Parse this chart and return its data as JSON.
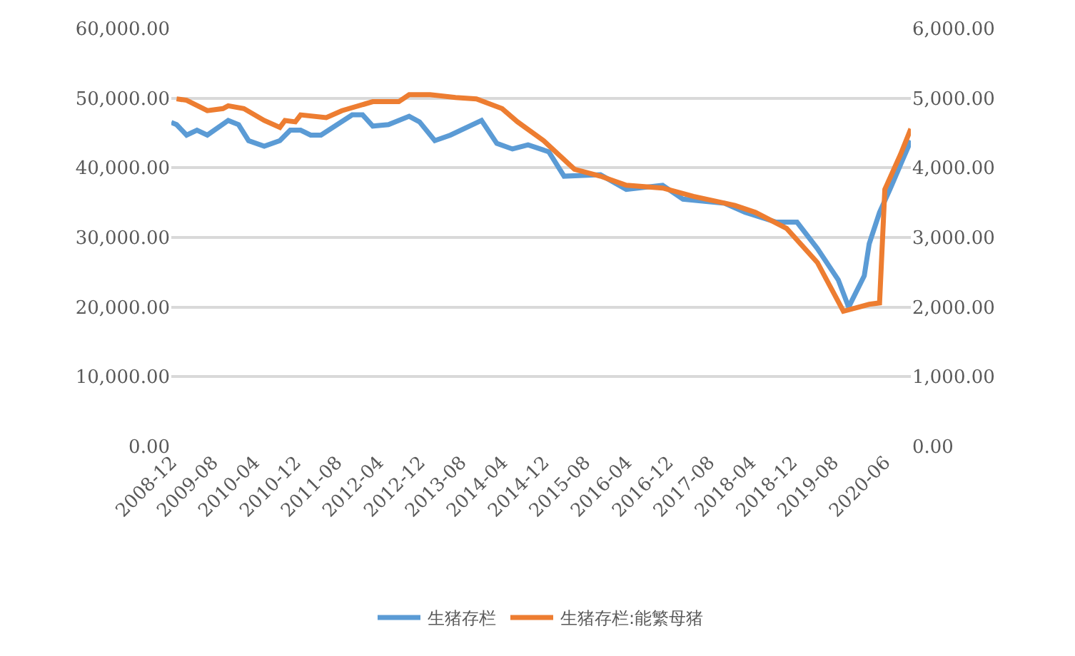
{
  "chart_data": {
    "type": "line",
    "xlim": [
      "2008-12",
      "2020-11"
    ],
    "xticks": [
      "2008-12",
      "2009-08",
      "2010-04",
      "2010-12",
      "2011-08",
      "2012-04",
      "2012-12",
      "2013-08",
      "2014-04",
      "2014-12",
      "2015-08",
      "2016-04",
      "2016-12",
      "2017-08",
      "2018-04",
      "2018-12",
      "2019-08",
      "2020-06"
    ],
    "ylim": [
      0,
      60000
    ],
    "yticks": [
      {
        "value": 0,
        "label": "0.00"
      },
      {
        "value": 10000,
        "label": "10,000.00"
      },
      {
        "value": 20000,
        "label": "20,000.00"
      },
      {
        "value": 30000,
        "label": "30,000.00"
      },
      {
        "value": 40000,
        "label": "40,000.00"
      },
      {
        "value": 50000,
        "label": "50,000.00"
      },
      {
        "value": 60000,
        "label": "60,000.00"
      }
    ],
    "y2lim": [
      0,
      6000
    ],
    "y2ticks": [
      {
        "value": 0,
        "label": "0.00"
      },
      {
        "value": 1000,
        "label": "1,000.00"
      },
      {
        "value": 2000,
        "label": "2,000.00"
      },
      {
        "value": 3000,
        "label": "3,000.00"
      },
      {
        "value": 4000,
        "label": "4,000.00"
      },
      {
        "value": 5000,
        "label": "5,000.00"
      },
      {
        "value": 6000,
        "label": "6,000.00"
      }
    ],
    "grid": "y",
    "legend": "bottom",
    "series": [
      {
        "name": "生猪存栏",
        "color": "#5b9bd5",
        "x": [
          "2008-12",
          "2009-01",
          "2009-03",
          "2009-05",
          "2009-07",
          "2009-11",
          "2010-01",
          "2010-03",
          "2010-06",
          "2010-09",
          "2010-11",
          "2011-01",
          "2011-03",
          "2011-05",
          "2011-11",
          "2012-01",
          "2012-03",
          "2012-06",
          "2012-10",
          "2012-12",
          "2013-03",
          "2013-06",
          "2013-12",
          "2014-03",
          "2014-06",
          "2014-09",
          "2015-01",
          "2015-04",
          "2015-11",
          "2016-04",
          "2016-11",
          "2017-03",
          "2017-11",
          "2018-03",
          "2018-09",
          "2019-01",
          "2019-05",
          "2019-09",
          "2019-11",
          "2020-02",
          "2020-03",
          "2020-05",
          "2020-07",
          "2020-11"
        ],
        "values": [
          46500,
          46200,
          44700,
          45400,
          44700,
          46800,
          46200,
          43900,
          43100,
          43900,
          45400,
          45400,
          44700,
          44700,
          47600,
          47600,
          46000,
          46200,
          47400,
          46600,
          43900,
          44700,
          46800,
          43500,
          42700,
          43300,
          42300,
          38800,
          39000,
          36900,
          37500,
          35500,
          34900,
          33600,
          32200,
          32200,
          28400,
          23900,
          20000,
          24500,
          29100,
          33600,
          36900,
          43900
        ]
      },
      {
        "name": "生猪存栏:能繁母猪",
        "color": "#ed7d31",
        "axis": "y2",
        "x": [
          "2009-01",
          "2009-03",
          "2009-07",
          "2009-10",
          "2009-11",
          "2010-02",
          "2010-06",
          "2010-09",
          "2010-10",
          "2010-12",
          "2011-01",
          "2011-06",
          "2011-09",
          "2012-03",
          "2012-08",
          "2012-10",
          "2013-02",
          "2013-07",
          "2013-11",
          "2014-04",
          "2014-07",
          "2014-12",
          "2015-06",
          "2015-11",
          "2016-04",
          "2016-11",
          "2017-05",
          "2018-01",
          "2018-05",
          "2018-11",
          "2019-05",
          "2019-10",
          "2020-03",
          "2020-05",
          "2020-06",
          "2020-09",
          "2020-11"
        ],
        "values": [
          4990,
          4970,
          4820,
          4850,
          4890,
          4850,
          4680,
          4580,
          4680,
          4660,
          4760,
          4720,
          4820,
          4950,
          4950,
          5050,
          5050,
          5010,
          4990,
          4850,
          4660,
          4390,
          3980,
          3880,
          3750,
          3710,
          3590,
          3460,
          3360,
          3130,
          2640,
          1940,
          2040,
          2060,
          3690,
          4190,
          4560
        ]
      }
    ]
  }
}
